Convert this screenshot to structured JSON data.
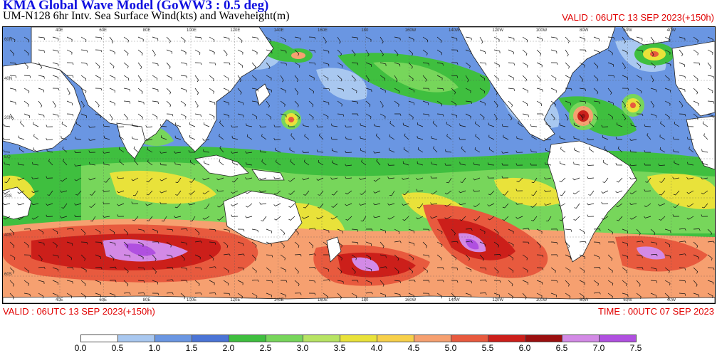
{
  "header": {
    "title": "KMA  Global Wave Model (GoWW3 : 0.5 deg)",
    "subtitle": "UM-N128  6hr Intv. Sea Surface Wind(kts) and Waveheight(m)",
    "valid_top": "VALID : 06UTC 13 SEP 2023(+150h)"
  },
  "footer": {
    "valid": "VALID : 06UTC 13 SEP 2023(+150h)",
    "time": "TIME : 00UTC 07 SEP 2023"
  },
  "map": {
    "lat_labels": [
      "60N",
      "40N",
      "20N",
      "EQ",
      "20S",
      "40S",
      "60S"
    ],
    "lon_labels": [
      "40E",
      "60E",
      "80E",
      "100E",
      "120E",
      "140E",
      "160E",
      "180",
      "160W",
      "140W",
      "120W",
      "100W",
      "80W",
      "60W",
      "40W"
    ]
  },
  "colorbar": {
    "levels": [
      "0.0",
      "0.5",
      "1.0",
      "1.5",
      "2.0",
      "2.5",
      "3.0",
      "3.5",
      "4.0",
      "4.5",
      "5.0",
      "5.5",
      "6.0",
      "6.5",
      "7.0",
      "7.5"
    ],
    "colors": [
      "#ffffff",
      "#a9c8f0",
      "#6a96e2",
      "#4a74d6",
      "#3fbf3f",
      "#77d65b",
      "#b7e463",
      "#e9e23a",
      "#f7d04a",
      "#f6a070",
      "#e85a3e",
      "#cc1f1a",
      "#9b0f0f",
      "#d38ae6",
      "#b050e0",
      "#8a2be2"
    ],
    "land_color": "#ffffff",
    "ocean_base_color": "#6a96e2"
  }
}
